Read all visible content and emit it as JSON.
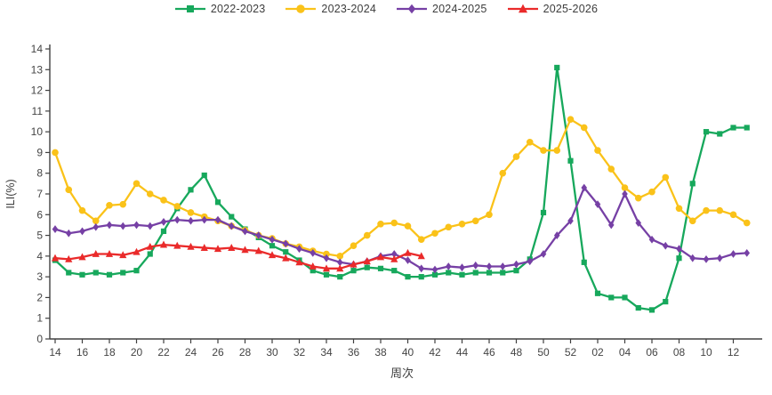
{
  "chart_data": {
    "type": "line",
    "title": "",
    "xlabel": "周次",
    "ylabel": "ILI(%)",
    "ylim": [
      0,
      14
    ],
    "y_ticks": [
      0,
      1,
      2,
      3,
      4,
      5,
      6,
      7,
      8,
      9,
      10,
      11,
      12,
      13,
      14
    ],
    "grid": false,
    "legend_position": "top-center",
    "categories": [
      "14",
      "15",
      "16",
      "17",
      "18",
      "19",
      "20",
      "21",
      "22",
      "23",
      "24",
      "25",
      "26",
      "27",
      "28",
      "29",
      "30",
      "31",
      "32",
      "33",
      "34",
      "35",
      "36",
      "37",
      "38",
      "39",
      "40",
      "41",
      "42",
      "43",
      "44",
      "45",
      "46",
      "47",
      "48",
      "49",
      "50",
      "51",
      "52",
      "01",
      "02",
      "03",
      "04",
      "05",
      "06",
      "07",
      "08",
      "09",
      "10",
      "11",
      "12",
      "13"
    ],
    "x_tick_labels": [
      "14",
      "16",
      "18",
      "20",
      "22",
      "24",
      "26",
      "28",
      "30",
      "32",
      "34",
      "36",
      "38",
      "40",
      "42",
      "44",
      "46",
      "48",
      "50",
      "52",
      "02",
      "04",
      "06",
      "08",
      "10",
      "12"
    ],
    "axis_color": "#404040",
    "series": [
      {
        "name": "2022-2023",
        "color": "#17a85c",
        "marker": "square",
        "values": [
          3.8,
          3.2,
          3.1,
          3.2,
          3.1,
          3.2,
          3.3,
          4.1,
          5.2,
          6.3,
          7.2,
          7.9,
          6.6,
          5.9,
          5.3,
          4.9,
          4.5,
          4.2,
          3.8,
          3.3,
          3.1,
          3.0,
          3.3,
          3.45,
          3.4,
          3.3,
          3.0,
          3.0,
          3.1,
          3.2,
          3.1,
          3.2,
          3.2,
          3.2,
          3.3,
          3.85,
          6.1,
          13.1,
          8.6,
          3.7,
          2.2,
          2.0,
          2.0,
          1.5,
          1.4,
          1.8,
          3.9,
          7.5,
          10.0,
          9.9,
          10.2,
          10.2
        ]
      },
      {
        "name": "2023-2024",
        "color": "#fac219",
        "marker": "circle",
        "values": [
          9.0,
          7.2,
          6.2,
          5.7,
          6.45,
          6.5,
          7.5,
          7.0,
          6.7,
          6.4,
          6.1,
          5.9,
          5.7,
          5.45,
          5.25,
          5.0,
          4.85,
          4.6,
          4.45,
          4.25,
          4.1,
          4.0,
          4.5,
          5.0,
          5.55,
          5.6,
          5.45,
          4.8,
          5.1,
          5.4,
          5.55,
          5.7,
          6.0,
          8.0,
          8.8,
          9.5,
          9.1,
          9.1,
          10.6,
          10.2,
          9.1,
          8.2,
          7.3,
          6.8,
          7.1,
          7.8,
          6.3,
          5.7,
          6.2,
          6.2,
          6.0,
          5.6
        ]
      },
      {
        "name": "2024-2025",
        "color": "#7640a5",
        "marker": "diamond",
        "values": [
          5.3,
          5.1,
          5.2,
          5.4,
          5.5,
          5.45,
          5.5,
          5.45,
          5.65,
          5.75,
          5.7,
          5.75,
          5.75,
          5.45,
          5.2,
          5.0,
          4.8,
          4.6,
          4.35,
          4.15,
          3.9,
          3.7,
          3.6,
          3.75,
          4.0,
          4.1,
          3.8,
          3.4,
          3.35,
          3.5,
          3.45,
          3.55,
          3.5,
          3.5,
          3.6,
          3.75,
          4.1,
          5.0,
          5.7,
          7.3,
          6.5,
          5.5,
          7.0,
          5.6,
          4.8,
          4.5,
          4.35,
          3.9,
          3.85,
          3.9,
          4.1,
          4.15
        ]
      },
      {
        "name": "2025-2026",
        "color": "#ea2a2a",
        "marker": "triangle",
        "values": [
          3.9,
          3.85,
          3.95,
          4.1,
          4.1,
          4.05,
          4.2,
          4.45,
          4.55,
          4.5,
          4.45,
          4.4,
          4.35,
          4.4,
          4.3,
          4.25,
          4.05,
          3.9,
          3.7,
          3.5,
          3.4,
          3.4,
          3.6,
          3.75,
          3.95,
          3.85,
          4.15,
          4.0,
          null,
          null,
          null,
          null,
          null,
          null,
          null,
          null,
          null,
          null,
          null,
          null,
          null,
          null,
          null,
          null,
          null,
          null,
          null,
          null,
          null,
          null,
          null,
          null
        ]
      }
    ]
  }
}
